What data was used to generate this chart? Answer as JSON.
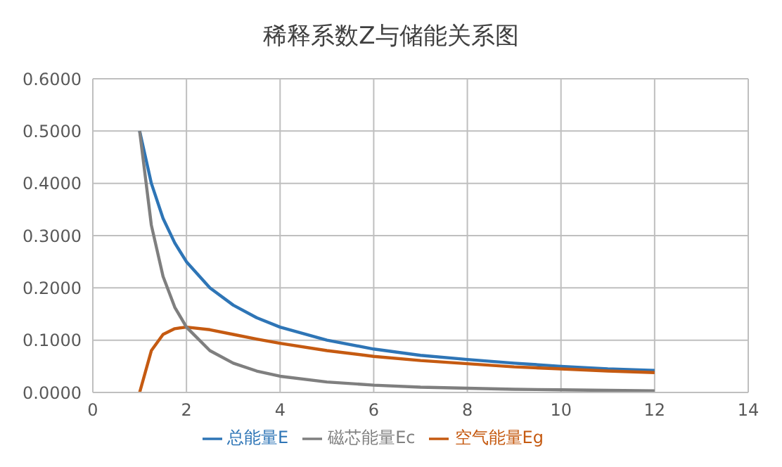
{
  "chart_data": {
    "type": "line",
    "title": "稀释系数Z与储能关系图",
    "x": [
      1,
      1.25,
      1.5,
      1.75,
      2,
      2.5,
      3,
      3.5,
      4,
      5,
      6,
      7,
      8,
      9,
      10,
      11,
      12
    ],
    "series": [
      {
        "name": "总能量E",
        "color": "#2e75b6",
        "values": [
          0.5,
          0.4,
          0.333,
          0.286,
          0.25,
          0.2,
          0.167,
          0.143,
          0.125,
          0.1,
          0.083,
          0.071,
          0.063,
          0.056,
          0.05,
          0.045,
          0.042
        ]
      },
      {
        "name": "空气能量Eg",
        "color": "#c55a11",
        "values": [
          0,
          0.08,
          0.111,
          0.122,
          0.125,
          0.12,
          0.111,
          0.102,
          0.094,
          0.08,
          0.069,
          0.061,
          0.055,
          0.049,
          0.045,
          0.041,
          0.038
        ]
      },
      {
        "name": "磁芯能量Ec",
        "color": "#7f7f7f",
        "values": [
          0.5,
          0.32,
          0.222,
          0.163,
          0.125,
          0.08,
          0.056,
          0.041,
          0.031,
          0.02,
          0.014,
          0.01,
          0.008,
          0.006,
          0.005,
          0.004,
          0.003
        ]
      }
    ],
    "xlim": [
      0,
      14
    ],
    "xticks": [
      0,
      2,
      4,
      6,
      8,
      10,
      12,
      14
    ],
    "ylim": [
      0,
      0.6
    ],
    "yticks": [
      {
        "value": 0,
        "label": "0.0000"
      },
      {
        "value": 0.1,
        "label": "0.1000"
      },
      {
        "value": 0.2,
        "label": "0.2000"
      },
      {
        "value": 0.3,
        "label": "0.3000"
      },
      {
        "value": 0.4,
        "label": "0.4000"
      },
      {
        "value": 0.5,
        "label": "0.5000"
      },
      {
        "value": 0.6,
        "label": "0.6000"
      }
    ],
    "grid": true,
    "legend": "bottom",
    "marker": "none",
    "line_style": "solid"
  }
}
